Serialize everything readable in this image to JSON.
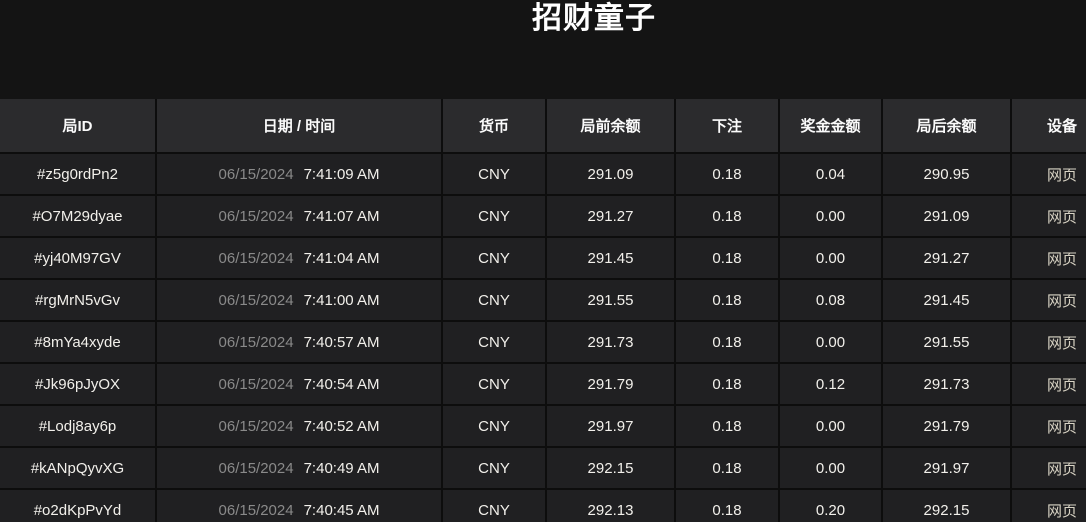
{
  "page": {
    "title": "招财童子"
  },
  "colors": {
    "background": "#141414",
    "header_bg": "#2b2b2d",
    "row_bg": "#202022",
    "divider": "#0d0d0d",
    "text": "#f2f0eb",
    "date_text": "#8a8a8a",
    "device_text": "#d9d4c5"
  },
  "table": {
    "headers": {
      "id": "局ID",
      "datetime": "日期 / 时间",
      "currency": "货币",
      "balance_before": "局前余额",
      "bet": "下注",
      "prize": "奖金金额",
      "balance_after": "局后余额",
      "device": "设备"
    },
    "rows": [
      {
        "id": "#z5g0rdPn2",
        "date": "06/15/2024",
        "time": "7:41:09 AM",
        "currency": "CNY",
        "balance_before": "291.09",
        "bet": "0.18",
        "prize": "0.04",
        "balance_after": "290.95",
        "device": "网页"
      },
      {
        "id": "#O7M29dyae",
        "date": "06/15/2024",
        "time": "7:41:07 AM",
        "currency": "CNY",
        "balance_before": "291.27",
        "bet": "0.18",
        "prize": "0.00",
        "balance_after": "291.09",
        "device": "网页"
      },
      {
        "id": "#yj40M97GV",
        "date": "06/15/2024",
        "time": "7:41:04 AM",
        "currency": "CNY",
        "balance_before": "291.45",
        "bet": "0.18",
        "prize": "0.00",
        "balance_after": "291.27",
        "device": "网页"
      },
      {
        "id": "#rgMrN5vGv",
        "date": "06/15/2024",
        "time": "7:41:00 AM",
        "currency": "CNY",
        "balance_before": "291.55",
        "bet": "0.18",
        "prize": "0.08",
        "balance_after": "291.45",
        "device": "网页"
      },
      {
        "id": "#8mYa4xyde",
        "date": "06/15/2024",
        "time": "7:40:57 AM",
        "currency": "CNY",
        "balance_before": "291.73",
        "bet": "0.18",
        "prize": "0.00",
        "balance_after": "291.55",
        "device": "网页"
      },
      {
        "id": "#Jk96pJyOX",
        "date": "06/15/2024",
        "time": "7:40:54 AM",
        "currency": "CNY",
        "balance_before": "291.79",
        "bet": "0.18",
        "prize": "0.12",
        "balance_after": "291.73",
        "device": "网页"
      },
      {
        "id": "#Lodj8ay6p",
        "date": "06/15/2024",
        "time": "7:40:52 AM",
        "currency": "CNY",
        "balance_before": "291.97",
        "bet": "0.18",
        "prize": "0.00",
        "balance_after": "291.79",
        "device": "网页"
      },
      {
        "id": "#kANpQyvXG",
        "date": "06/15/2024",
        "time": "7:40:49 AM",
        "currency": "CNY",
        "balance_before": "292.15",
        "bet": "0.18",
        "prize": "0.00",
        "balance_after": "291.97",
        "device": "网页"
      },
      {
        "id": "#o2dKpPvYd",
        "date": "06/15/2024",
        "time": "7:40:45 AM",
        "currency": "CNY",
        "balance_before": "292.13",
        "bet": "0.18",
        "prize": "0.20",
        "balance_after": "292.15",
        "device": "网页"
      }
    ]
  }
}
